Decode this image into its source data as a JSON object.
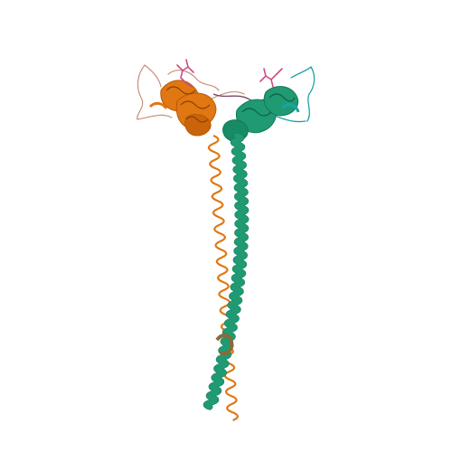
{
  "image": {
    "kind": "protein-ribbon-structure",
    "background": "#ffffff",
    "chains": [
      {
        "name": "chain-a",
        "color": "#e07712",
        "shade": "#b55a08",
        "style": "ribbon helix (thin, lower half) + compact globular domain (top-left)"
      },
      {
        "name": "chain-b",
        "color": "#1f9a73",
        "shade": "#137a57",
        "style": "long ribbon helix + compact globular domain (top-right)"
      }
    ],
    "ligands": [
      {
        "name": "ligand-left",
        "color": "#d04a8a"
      },
      {
        "name": "ligand-right",
        "color": "#d04a8a"
      }
    ],
    "loop_colors": {
      "left_domain_loops": "#c9907a",
      "right_domain_loops": "#1aa2a8",
      "linker": "#7a4a6a"
    }
  }
}
